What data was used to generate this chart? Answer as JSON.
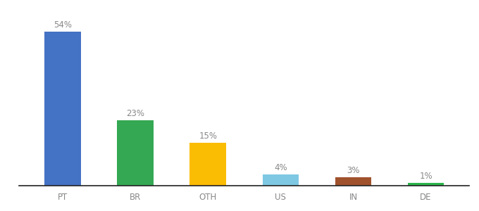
{
  "categories": [
    "PT",
    "BR",
    "OTH",
    "US",
    "IN",
    "DE"
  ],
  "values": [
    54,
    23,
    15,
    4,
    3,
    1
  ],
  "bar_colors": [
    "#4472C4",
    "#34A853",
    "#FBBC04",
    "#7EC8E3",
    "#A0522D",
    "#2DB54B"
  ],
  "labels": [
    "54%",
    "23%",
    "15%",
    "4%",
    "3%",
    "1%"
  ],
  "ylim": [
    0,
    63
  ],
  "background_color": "#ffffff",
  "label_color": "#888888",
  "label_fontsize": 8.5,
  "tick_fontsize": 8.5,
  "bar_width": 0.5
}
